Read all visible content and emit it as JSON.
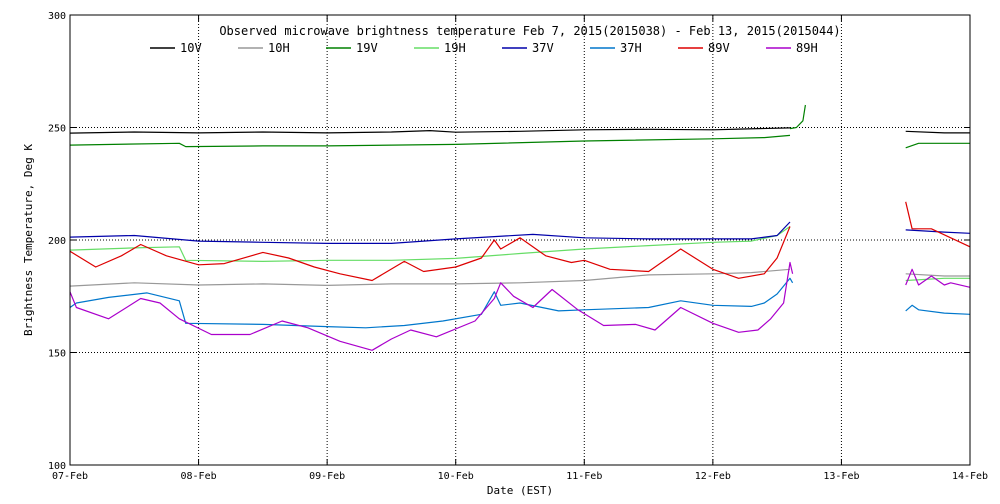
{
  "chart_data": {
    "type": "line",
    "title": "Observed microwave brightness temperature Feb  7, 2015(2015038) - Feb 13, 2015(2015044)",
    "xlabel": "Date (EST)",
    "ylabel": "Brightness Temperature, Deg K",
    "xlim": [
      0,
      7
    ],
    "ylim": [
      100,
      300
    ],
    "x_ticks": [
      {
        "v": 0,
        "label": "07-Feb"
      },
      {
        "v": 1,
        "label": "08-Feb"
      },
      {
        "v": 2,
        "label": "09-Feb"
      },
      {
        "v": 3,
        "label": "10-Feb"
      },
      {
        "v": 4,
        "label": "11-Feb"
      },
      {
        "v": 5,
        "label": "12-Feb"
      },
      {
        "v": 6,
        "label": "13-Feb"
      },
      {
        "v": 7,
        "label": "14-Feb"
      }
    ],
    "y_ticks": [
      {
        "v": 100,
        "label": "100"
      },
      {
        "v": 150,
        "label": "150"
      },
      {
        "v": 200,
        "label": "200"
      },
      {
        "v": 250,
        "label": "250"
      },
      {
        "v": 300,
        "label": "300"
      }
    ],
    "grid": "dotted",
    "legend_position": "top",
    "series": [
      {
        "name": "10V",
        "color": "#000000",
        "segments": [
          [
            [
              0,
              247.5
            ],
            [
              0.5,
              248
            ],
            [
              1,
              247.6
            ],
            [
              1.5,
              248
            ],
            [
              2,
              247.6
            ],
            [
              2.5,
              248
            ],
            [
              2.8,
              248.6
            ],
            [
              3,
              247.9
            ],
            [
              3.5,
              248.3
            ],
            [
              4,
              249
            ],
            [
              4.5,
              249.2
            ],
            [
              5,
              249
            ],
            [
              5.2,
              249.3
            ],
            [
              5.6,
              249.8
            ]
          ],
          [
            [
              6.5,
              248.3
            ],
            [
              6.8,
              247.6
            ],
            [
              7,
              247.6
            ]
          ]
        ]
      },
      {
        "name": "10H",
        "color": "#999999",
        "segments": [
          [
            [
              0,
              179.5
            ],
            [
              0.5,
              181
            ],
            [
              1,
              180
            ],
            [
              1.5,
              180.5
            ],
            [
              2,
              179.8
            ],
            [
              2.5,
              180.5
            ],
            [
              3,
              180.5
            ],
            [
              3.5,
              181
            ],
            [
              4,
              182
            ],
            [
              4.5,
              184.5
            ],
            [
              5,
              185
            ],
            [
              5.3,
              185.5
            ],
            [
              5.6,
              187
            ]
          ],
          [
            [
              6.5,
              185
            ],
            [
              6.8,
              184
            ],
            [
              7,
              184
            ]
          ]
        ]
      },
      {
        "name": "19V",
        "color": "#008000",
        "segments": [
          [
            [
              0,
              242.2
            ],
            [
              0.85,
              243
            ],
            [
              0.9,
              241.5
            ],
            [
              1.5,
              241.8
            ],
            [
              2,
              241.8
            ],
            [
              3,
              242.5
            ],
            [
              4,
              244
            ],
            [
              5,
              245
            ],
            [
              5.4,
              245.5
            ],
            [
              5.6,
              246.5
            ]
          ],
          [
            [
              5.6,
              249.5
            ],
            [
              5.65,
              250
            ],
            [
              5.7,
              253
            ],
            [
              5.72,
              260
            ]
          ],
          [
            [
              6.5,
              241
            ],
            [
              6.6,
              243
            ],
            [
              7,
              243
            ]
          ]
        ]
      },
      {
        "name": "19H",
        "color": "#66dd66",
        "segments": [
          [
            [
              0,
              195.5
            ],
            [
              0.5,
              196.5
            ],
            [
              0.85,
              197
            ],
            [
              0.9,
              191
            ],
            [
              1.5,
              190.5
            ],
            [
              2,
              191
            ],
            [
              2.5,
              191
            ],
            [
              3,
              191.8
            ],
            [
              3.5,
              194
            ],
            [
              4,
              196
            ],
            [
              4.5,
              197.5
            ],
            [
              5,
              199
            ],
            [
              5.3,
              199.5
            ],
            [
              5.5,
              202
            ],
            [
              5.6,
              206
            ]
          ],
          [
            [
              6.5,
              182
            ],
            [
              6.8,
              183
            ],
            [
              7,
              183
            ]
          ]
        ]
      },
      {
        "name": "37V",
        "color": "#0000aa",
        "segments": [
          [
            [
              0,
              201.3
            ],
            [
              0.5,
              202
            ],
            [
              1,
              199.5
            ],
            [
              1.5,
              199
            ],
            [
              2,
              198.5
            ],
            [
              2.5,
              198.5
            ],
            [
              3,
              200.5
            ],
            [
              3.3,
              201.5
            ],
            [
              3.6,
              202.5
            ],
            [
              4,
              201
            ],
            [
              4.5,
              200.5
            ],
            [
              5,
              200.5
            ],
            [
              5.3,
              200.5
            ],
            [
              5.5,
              202
            ],
            [
              5.6,
              208
            ]
          ],
          [
            [
              6.5,
              204.5
            ],
            [
              6.8,
              203.5
            ],
            [
              7,
              203
            ]
          ]
        ]
      },
      {
        "name": "37H",
        "color": "#0077cc",
        "segments": [
          [
            [
              0,
              170
            ],
            [
              0.05,
              172
            ],
            [
              0.3,
              174.5
            ],
            [
              0.6,
              176.5
            ],
            [
              0.85,
              173
            ],
            [
              0.9,
              163
            ],
            [
              1.5,
              162.5
            ],
            [
              2,
              161.5
            ],
            [
              2.3,
              161
            ],
            [
              2.6,
              162
            ],
            [
              2.9,
              164
            ],
            [
              3.2,
              167
            ],
            [
              3.3,
              177
            ],
            [
              3.35,
              171
            ],
            [
              3.5,
              172
            ],
            [
              3.8,
              168.5
            ],
            [
              4,
              169
            ],
            [
              4.5,
              170
            ],
            [
              4.75,
              173
            ],
            [
              5,
              171
            ],
            [
              5.3,
              170.5
            ],
            [
              5.4,
              172
            ],
            [
              5.5,
              176
            ],
            [
              5.6,
              183
            ],
            [
              5.62,
              181
            ]
          ],
          [
            [
              6.5,
              168.5
            ],
            [
              6.55,
              171
            ],
            [
              6.6,
              169
            ],
            [
              6.8,
              167.5
            ],
            [
              7,
              167
            ]
          ]
        ]
      },
      {
        "name": "89V",
        "color": "#dd0000",
        "segments": [
          [
            [
              0,
              195
            ],
            [
              0.2,
              188
            ],
            [
              0.4,
              193
            ],
            [
              0.55,
              198
            ],
            [
              0.75,
              193
            ],
            [
              1,
              189
            ],
            [
              1.2,
              189.5
            ],
            [
              1.5,
              194.5
            ],
            [
              1.7,
              192
            ],
            [
              1.9,
              188
            ],
            [
              2.1,
              185
            ],
            [
              2.35,
              182
            ],
            [
              2.6,
              190.5
            ],
            [
              2.75,
              186
            ],
            [
              3,
              188
            ],
            [
              3.2,
              192
            ],
            [
              3.3,
              200
            ],
            [
              3.35,
              196
            ],
            [
              3.5,
              201
            ],
            [
              3.7,
              193
            ],
            [
              3.9,
              190
            ],
            [
              4,
              191
            ],
            [
              4.2,
              187
            ],
            [
              4.5,
              186
            ],
            [
              4.75,
              196
            ],
            [
              5,
              187
            ],
            [
              5.2,
              183
            ],
            [
              5.4,
              185
            ],
            [
              5.5,
              192
            ],
            [
              5.6,
              206
            ]
          ],
          [
            [
              6.5,
              217
            ],
            [
              6.55,
              205
            ],
            [
              6.7,
              205
            ],
            [
              6.85,
              201
            ],
            [
              7,
              197
            ]
          ]
        ]
      },
      {
        "name": "89H",
        "color": "#aa00cc",
        "segments": [
          [
            [
              0,
              177
            ],
            [
              0.05,
              170
            ],
            [
              0.3,
              165
            ],
            [
              0.55,
              174
            ],
            [
              0.7,
              172
            ],
            [
              0.85,
              165
            ],
            [
              1.1,
              158
            ],
            [
              1.4,
              158
            ],
            [
              1.65,
              164
            ],
            [
              1.85,
              161
            ],
            [
              2.1,
              155
            ],
            [
              2.35,
              151
            ],
            [
              2.5,
              156
            ],
            [
              2.65,
              160
            ],
            [
              2.85,
              157
            ],
            [
              3.15,
              164
            ],
            [
              3.3,
              174
            ],
            [
              3.35,
              181
            ],
            [
              3.45,
              175
            ],
            [
              3.6,
              170
            ],
            [
              3.75,
              178
            ],
            [
              3.95,
              169
            ],
            [
              4.15,
              162
            ],
            [
              4.4,
              162.5
            ],
            [
              4.55,
              160
            ],
            [
              4.75,
              170
            ],
            [
              5,
              163
            ],
            [
              5.2,
              159
            ],
            [
              5.35,
              160
            ],
            [
              5.45,
              165
            ],
            [
              5.55,
              172
            ],
            [
              5.6,
              190
            ],
            [
              5.62,
              185
            ]
          ],
          [
            [
              6.5,
              180
            ],
            [
              6.55,
              187
            ],
            [
              6.6,
              180
            ],
            [
              6.7,
              184
            ],
            [
              6.8,
              180
            ],
            [
              6.85,
              181
            ],
            [
              7,
              179
            ]
          ]
        ]
      }
    ]
  }
}
